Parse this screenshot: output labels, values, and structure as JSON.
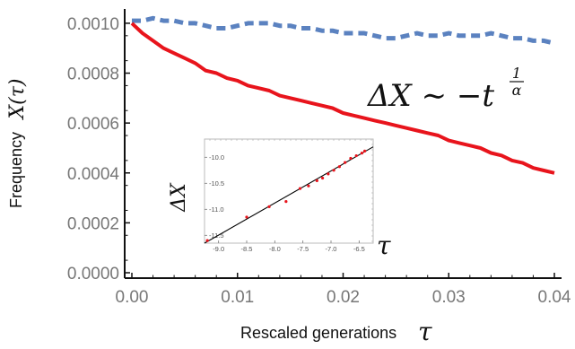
{
  "chart_data": {
    "type": "line",
    "xlabel": "Rescaled generations",
    "xlabel_symbol": "τ",
    "ylabel": "Frequency",
    "ylabel_symbol": "X(τ)",
    "xlim": [
      0.0,
      0.04
    ],
    "ylim": [
      0.0,
      0.00105
    ],
    "x_ticks": [
      "0.00",
      "0.01",
      "0.02",
      "0.03",
      "0.04"
    ],
    "y_ticks": [
      "0.0000",
      "0.0002",
      "0.0004",
      "0.0006",
      "0.0008",
      "0.0010"
    ],
    "x_tick_values": [
      0.0,
      0.01,
      0.02,
      0.03,
      0.04
    ],
    "y_tick_values": [
      0.0,
      0.0002,
      0.0004,
      0.0006,
      0.0008,
      0.001
    ],
    "grid": false,
    "annotation": {
      "main": "ΔX ∼ −t",
      "superscript_num": "1",
      "superscript_den": "α"
    },
    "series": [
      {
        "style": "dashed",
        "color": "#5b82c0",
        "x": [
          0.0,
          0.001,
          0.002,
          0.003,
          0.004,
          0.005,
          0.006,
          0.007,
          0.008,
          0.009,
          0.01,
          0.011,
          0.012,
          0.013,
          0.014,
          0.015,
          0.016,
          0.017,
          0.018,
          0.019,
          0.02,
          0.021,
          0.022,
          0.023,
          0.024,
          0.025,
          0.026,
          0.027,
          0.028,
          0.029,
          0.03,
          0.031,
          0.032,
          0.033,
          0.034,
          0.035,
          0.036,
          0.037,
          0.038,
          0.039,
          0.04
        ],
        "y": [
          0.00101,
          0.00101,
          0.00102,
          0.00101,
          0.00101,
          0.001,
          0.001,
          0.00099,
          0.00098,
          0.00098,
          0.00099,
          0.001,
          0.001,
          0.001,
          0.00099,
          0.00099,
          0.00098,
          0.00098,
          0.00097,
          0.00097,
          0.00096,
          0.00096,
          0.00096,
          0.00095,
          0.00094,
          0.00094,
          0.00095,
          0.00096,
          0.00095,
          0.00095,
          0.00096,
          0.00095,
          0.00095,
          0.00095,
          0.00096,
          0.00095,
          0.00094,
          0.00094,
          0.00093,
          0.00093,
          0.00092
        ]
      },
      {
        "style": "solid",
        "color": "#e8141c",
        "x": [
          0.0,
          0.001,
          0.002,
          0.003,
          0.004,
          0.005,
          0.006,
          0.007,
          0.008,
          0.009,
          0.01,
          0.011,
          0.012,
          0.013,
          0.014,
          0.015,
          0.016,
          0.017,
          0.018,
          0.019,
          0.02,
          0.021,
          0.022,
          0.023,
          0.024,
          0.025,
          0.026,
          0.027,
          0.028,
          0.029,
          0.03,
          0.031,
          0.032,
          0.033,
          0.034,
          0.035,
          0.036,
          0.037,
          0.038,
          0.039,
          0.04
        ],
        "y": [
          0.001,
          0.00096,
          0.00093,
          0.0009,
          0.00088,
          0.00086,
          0.00084,
          0.00081,
          0.0008,
          0.00078,
          0.00077,
          0.00075,
          0.00074,
          0.00073,
          0.00071,
          0.0007,
          0.00069,
          0.00068,
          0.00067,
          0.00066,
          0.00064,
          0.00063,
          0.00062,
          0.00061,
          0.0006,
          0.00059,
          0.00058,
          0.00057,
          0.00056,
          0.00055,
          0.00053,
          0.00052,
          0.00051,
          0.0005,
          0.00048,
          0.00047,
          0.00045,
          0.00044,
          0.00042,
          0.00041,
          0.0004
        ]
      }
    ],
    "inset": {
      "type": "scatter",
      "xlabel_symbol": "τ",
      "ylabel_symbol": "ΔX",
      "xlim": [
        -9.25,
        -6.25
      ],
      "ylim": [
        -11.65,
        -9.65
      ],
      "x_ticks": [
        "-9.0",
        "-8.5",
        "-8.0",
        "-7.5",
        "-7.0",
        "-6.5"
      ],
      "x_tick_values": [
        -9.0,
        -8.5,
        -8.0,
        -7.5,
        -7.0,
        -6.5
      ],
      "y_ticks": [
        "-10.0",
        "-10.5",
        "-11.0",
        "-11.5"
      ],
      "y_tick_values": [
        -10.0,
        -10.5,
        -11.0,
        -11.5
      ],
      "points": {
        "color": "#e8141c",
        "x": [
          -9.2,
          -8.5,
          -8.1,
          -7.8,
          -7.55,
          -7.4,
          -7.25,
          -7.15,
          -7.05,
          -6.95,
          -6.85,
          -6.75,
          -6.65,
          -6.55,
          -6.45,
          -6.4
        ],
        "y": [
          -11.6,
          -11.15,
          -10.95,
          -10.85,
          -10.6,
          -10.55,
          -10.45,
          -10.4,
          -10.32,
          -10.25,
          -10.18,
          -10.1,
          -10.02,
          -9.97,
          -9.92,
          -9.88
        ]
      },
      "fit_line": {
        "color": "#000000",
        "x": [
          -9.25,
          -6.25
        ],
        "y": [
          -11.65,
          -9.8
        ]
      }
    }
  }
}
